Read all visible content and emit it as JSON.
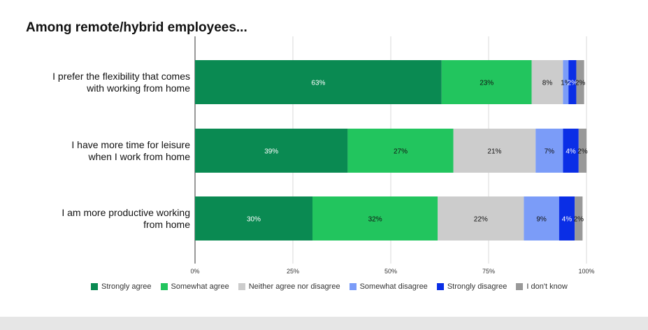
{
  "chart_data": {
    "type": "bar",
    "orientation": "horizontal",
    "stacked": true,
    "title": "Among remote/hybrid employees...",
    "categories": [
      "I prefer the flexibility that comes with working from home",
      "I have more time for leisure when I work from home",
      "I am more productive working from home"
    ],
    "category_lines": [
      [
        "I prefer the flexibility that comes",
        "with working from home"
      ],
      [
        "I have more time for leisure",
        "when I work from home"
      ],
      [
        "I am more productive working",
        "from home"
      ]
    ],
    "series": [
      {
        "name": "Strongly agree",
        "color": "#0a8a52",
        "values": [
          63,
          39,
          30
        ],
        "labels": [
          "63%",
          "39%",
          "30%"
        ],
        "label_color": "#ffffff"
      },
      {
        "name": "Somewhat agree",
        "color": "#22c55e",
        "values": [
          23,
          27,
          32
        ],
        "labels": [
          "23%",
          "27%",
          "32%"
        ],
        "label_color": "#111111"
      },
      {
        "name": "Neither agree nor disagree",
        "color": "#cccccc",
        "values": [
          8,
          21,
          22
        ],
        "labels": [
          "8%",
          "21%",
          "22%"
        ],
        "label_color": "#111111"
      },
      {
        "name": "Somewhat disagree",
        "color": "#7b9cf8",
        "values": [
          1.4,
          7,
          9
        ],
        "labels": [
          "1%",
          "7%",
          "9%"
        ],
        "label_color": "#111111"
      },
      {
        "name": "Strongly disagree",
        "color": "#0a2ee6",
        "values": [
          2,
          4,
          4
        ],
        "labels": [
          "2%",
          "4%",
          "4%"
        ],
        "label_color": "#ffffff"
      },
      {
        "name": "I don't know",
        "color": "#999999",
        "values": [
          2,
          2,
          2
        ],
        "labels": [
          "2%",
          "2%",
          "2%"
        ],
        "label_color": "#111111"
      }
    ],
    "xlim": [
      0,
      100
    ],
    "xticks": [
      "0%",
      "25%",
      "50%",
      "75%",
      "100%"
    ],
    "grid": true,
    "legend_position": "bottom"
  }
}
